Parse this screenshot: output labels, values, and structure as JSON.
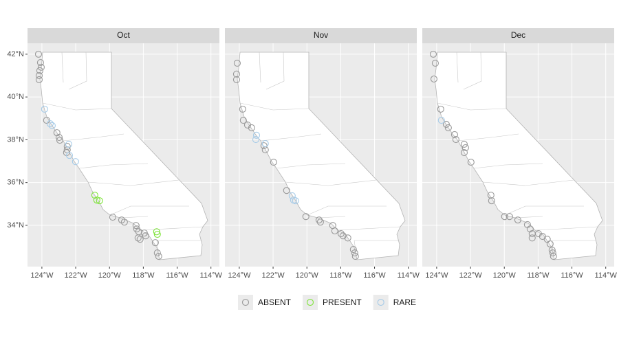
{
  "chart_data": [
    {
      "type": "scatter",
      "title": "Oct",
      "xlim": [
        -124.85,
        -113.5
      ],
      "ylim": [
        32.07,
        42.51
      ],
      "xticks": [
        {
          "value": -124,
          "label": "124°W"
        },
        {
          "value": -122,
          "label": "122°W"
        },
        {
          "value": -120,
          "label": "120°W"
        },
        {
          "value": -118,
          "label": "118°W"
        },
        {
          "value": -116,
          "label": "116°W"
        },
        {
          "value": -114,
          "label": "114°W"
        }
      ],
      "yticks": [
        {
          "value": 34,
          "label": "34°N"
        },
        {
          "value": 36,
          "label": "36°N"
        },
        {
          "value": 38,
          "label": "38°N"
        },
        {
          "value": 40,
          "label": "40°N"
        },
        {
          "value": 42,
          "label": "42°N"
        }
      ],
      "series": [
        {
          "name": "ABSENT",
          "color": "#999999",
          "x": [
            -124.2,
            -124.08,
            -124.04,
            -124.12,
            -124.16,
            -124.16,
            -123.72,
            -123.11,
            -122.98,
            -122.94,
            -122.5,
            -122.5,
            -122.54,
            -119.81,
            -119.28,
            -119.12,
            -118.43,
            -118.39,
            -118.27,
            -118.31,
            -118.19,
            -117.94,
            -117.86,
            -117.29,
            -117.17,
            -117.09
          ],
          "y": [
            42.0,
            41.61,
            41.39,
            41.23,
            41.0,
            40.81,
            38.91,
            38.33,
            38.11,
            37.98,
            37.69,
            37.53,
            37.4,
            34.38,
            34.25,
            34.15,
            33.99,
            33.83,
            33.7,
            33.41,
            33.35,
            33.64,
            33.51,
            33.19,
            32.71,
            32.55
          ]
        },
        {
          "name": "PRESENT",
          "color": "#7fe33a",
          "x": [
            -120.87,
            -120.75,
            -120.59,
            -117.21,
            -117.17
          ],
          "y": [
            35.41,
            35.18,
            35.15,
            33.7,
            33.58
          ]
        },
        {
          "name": "RARE",
          "color": "#a6cbe8",
          "x": [
            -123.84,
            -123.51,
            -123.39,
            -122.41,
            -122.37,
            -122.01
          ],
          "y": [
            39.43,
            38.75,
            38.66,
            37.79,
            37.27,
            36.98
          ]
        }
      ]
    },
    {
      "type": "scatter",
      "title": "Nov",
      "xlim": [
        -124.85,
        -113.5
      ],
      "ylim": [
        32.07,
        42.51
      ],
      "xticks": [
        {
          "value": -124,
          "label": "124°W"
        },
        {
          "value": -122,
          "label": "122°W"
        },
        {
          "value": -120,
          "label": "120°W"
        },
        {
          "value": -118,
          "label": "118°W"
        },
        {
          "value": -116,
          "label": "116°W"
        },
        {
          "value": -114,
          "label": "114°W"
        }
      ],
      "yticks": [
        {
          "value": 34,
          "label": "34°N"
        },
        {
          "value": 36,
          "label": "36°N"
        },
        {
          "value": 38,
          "label": "38°N"
        },
        {
          "value": 40,
          "label": "40°N"
        },
        {
          "value": 42,
          "label": "42°N"
        }
      ],
      "series": [
        {
          "name": "ABSENT",
          "color": "#999999",
          "x": [
            -124.12,
            -124.16,
            -124.16,
            -123.8,
            -123.76,
            -123.51,
            -123.27,
            -122.54,
            -122.46,
            -121.97,
            -121.2,
            -120.06,
            -119.28,
            -119.2,
            -118.47,
            -118.35,
            -117.98,
            -117.86,
            -117.58,
            -117.25,
            -117.17,
            -117.13
          ],
          "y": [
            41.58,
            41.07,
            40.81,
            39.43,
            38.91,
            38.69,
            38.56,
            37.72,
            37.53,
            36.95,
            35.63,
            34.41,
            34.25,
            34.15,
            33.99,
            33.74,
            33.61,
            33.51,
            33.41,
            32.87,
            32.71,
            32.55
          ]
        },
        {
          "name": "PRESENT",
          "color": "#7fe33a",
          "x": [],
          "y": []
        },
        {
          "name": "RARE",
          "color": "#a6cbe8",
          "x": [
            -122.98,
            -123.02,
            -122.46,
            -120.87,
            -120.79,
            -120.67
          ],
          "y": [
            38.21,
            38.01,
            37.82,
            35.38,
            35.18,
            35.15
          ]
        }
      ]
    },
    {
      "type": "scatter",
      "title": "Dec",
      "xlim": [
        -124.85,
        -113.5
      ],
      "ylim": [
        32.07,
        42.51
      ],
      "xticks": [
        {
          "value": -124,
          "label": "124°W"
        },
        {
          "value": -122,
          "label": "122°W"
        },
        {
          "value": -120,
          "label": "120°W"
        },
        {
          "value": -118,
          "label": "118°W"
        },
        {
          "value": -116,
          "label": "116°W"
        },
        {
          "value": -114,
          "label": "114°W"
        }
      ],
      "yticks": [
        {
          "value": 34,
          "label": "34°N"
        },
        {
          "value": 36,
          "label": "36°N"
        },
        {
          "value": 38,
          "label": "38°N"
        },
        {
          "value": 40,
          "label": "40°N"
        },
        {
          "value": 42,
          "label": "42°N"
        }
      ],
      "series": [
        {
          "name": "ABSENT",
          "color": "#999999",
          "x": [
            -124.2,
            -124.08,
            -124.16,
            -123.76,
            -123.43,
            -123.31,
            -122.94,
            -122.86,
            -122.37,
            -122.29,
            -122.37,
            -121.97,
            -120.79,
            -120.75,
            -119.98,
            -119.69,
            -119.2,
            -118.63,
            -118.47,
            -118.35,
            -118.35,
            -117.98,
            -117.74,
            -117.46,
            -117.29,
            -117.17,
            -117.13,
            -117.09
          ],
          "y": [
            42.0,
            41.58,
            40.84,
            39.43,
            38.72,
            38.56,
            38.24,
            38.01,
            37.79,
            37.63,
            37.4,
            36.95,
            35.41,
            35.15,
            34.41,
            34.41,
            34.25,
            34.03,
            33.83,
            33.61,
            33.41,
            33.61,
            33.48,
            33.35,
            33.13,
            32.84,
            32.71,
            32.55
          ]
        },
        {
          "name": "PRESENT",
          "color": "#7fe33a",
          "x": [],
          "y": []
        },
        {
          "name": "RARE",
          "color": "#a6cbe8",
          "x": [
            -123.72
          ],
          "y": [
            38.91
          ]
        }
      ]
    }
  ]
}
